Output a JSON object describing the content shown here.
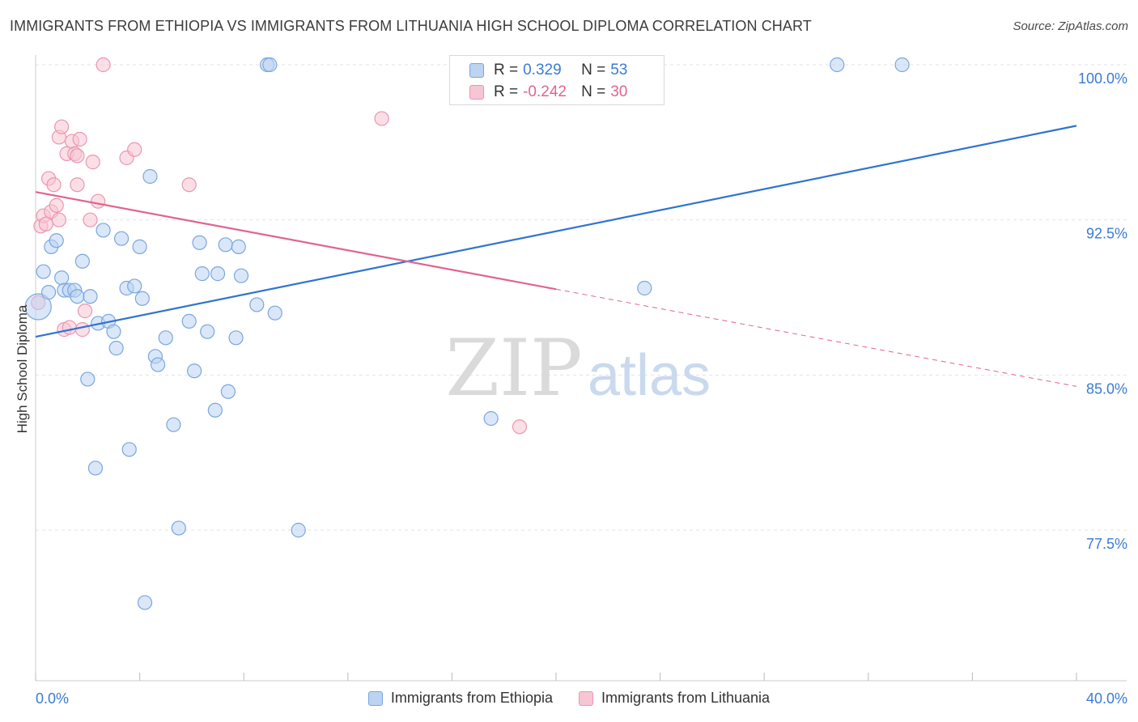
{
  "title": "IMMIGRANTS FROM ETHIOPIA VS IMMIGRANTS FROM LITHUANIA HIGH SCHOOL DIPLOMA CORRELATION CHART",
  "source": "Source: ZipAtlas.com",
  "watermark": {
    "zip": "ZIP",
    "atlas": "atlas"
  },
  "colors": {
    "blue_fill": "#bcd3f2",
    "blue_stroke": "#7aa6df",
    "blue_line": "#2f74d0",
    "pink_fill": "#f7c5d4",
    "pink_stroke": "#ea96b0",
    "pink_line": "#e0648f",
    "grid": "#e3e3e3",
    "tick_text": "#3a7bd5"
  },
  "stats": {
    "rows": [
      {
        "r_label": "R =",
        "r_value": "0.329",
        "n_label": "N =",
        "n_value": "53"
      },
      {
        "r_label": "R =",
        "r_value": "-0.242",
        "n_label": "N =",
        "n_value": "30"
      }
    ]
  },
  "legend": {
    "items": [
      "Immigrants from Ethiopia",
      "Immigrants from Lithuania"
    ]
  },
  "chart_data": {
    "type": "scatter",
    "title": "IMMIGRANTS FROM ETHIOPIA VS IMMIGRANTS FROM LITHUANIA HIGH SCHOOL DIPLOMA CORRELATION CHART",
    "xlabel": "",
    "ylabel": "High School Diploma",
    "xlim": [
      0,
      40
    ],
    "ylim": [
      72.0,
      101.0
    ],
    "x_tick_labels": [
      "0.0%",
      "40.0%"
    ],
    "y_ticks": [
      100.0,
      92.5,
      85.0,
      77.5
    ],
    "y_tick_labels": [
      "100.0%",
      "92.5%",
      "85.0%",
      "77.5%"
    ],
    "grid": true,
    "legend_position": "bottom",
    "series": [
      {
        "name": "Immigrants from Ethiopia",
        "color": "#7aa6df",
        "points": [
          [
            0.1,
            88.3
          ],
          [
            0.3,
            90.0
          ],
          [
            0.5,
            89.0
          ],
          [
            0.6,
            91.2
          ],
          [
            0.8,
            91.5
          ],
          [
            1.0,
            89.7
          ],
          [
            1.1,
            89.1
          ],
          [
            1.3,
            89.1
          ],
          [
            1.5,
            89.1
          ],
          [
            1.6,
            88.8
          ],
          [
            1.8,
            90.5
          ],
          [
            2.0,
            84.8
          ],
          [
            2.1,
            88.8
          ],
          [
            2.3,
            80.5
          ],
          [
            2.4,
            87.5
          ],
          [
            2.6,
            92.0
          ],
          [
            2.8,
            87.6
          ],
          [
            3.0,
            87.1
          ],
          [
            3.1,
            86.3
          ],
          [
            3.3,
            91.6
          ],
          [
            3.5,
            89.2
          ],
          [
            3.6,
            81.4
          ],
          [
            3.8,
            89.3
          ],
          [
            4.0,
            91.2
          ],
          [
            4.1,
            88.7
          ],
          [
            4.2,
            74.0
          ],
          [
            4.4,
            94.6
          ],
          [
            4.6,
            85.9
          ],
          [
            4.7,
            85.5
          ],
          [
            5.0,
            86.8
          ],
          [
            5.3,
            82.6
          ],
          [
            5.5,
            77.6
          ],
          [
            5.9,
            87.6
          ],
          [
            6.3,
            91.4
          ],
          [
            6.1,
            85.2
          ],
          [
            6.4,
            89.9
          ],
          [
            6.6,
            87.1
          ],
          [
            6.9,
            83.3
          ],
          [
            7.0,
            89.9
          ],
          [
            7.3,
            91.3
          ],
          [
            7.4,
            84.2
          ],
          [
            7.8,
            91.2
          ],
          [
            7.7,
            86.8
          ],
          [
            7.9,
            89.8
          ],
          [
            8.5,
            88.4
          ],
          [
            8.9,
            100.0
          ],
          [
            9.0,
            100.0
          ],
          [
            9.2,
            88.0
          ],
          [
            10.1,
            77.5
          ],
          [
            17.5,
            82.9
          ],
          [
            23.4,
            89.2
          ],
          [
            30.8,
            100.0
          ],
          [
            33.3,
            100.0
          ]
        ]
      },
      {
        "name": "Immigrants from Lithuania",
        "color": "#ea96b0",
        "points": [
          [
            0.1,
            88.5
          ],
          [
            0.2,
            92.2
          ],
          [
            0.3,
            92.7
          ],
          [
            0.4,
            92.3
          ],
          [
            0.5,
            94.5
          ],
          [
            0.6,
            92.9
          ],
          [
            0.7,
            94.2
          ],
          [
            0.8,
            93.2
          ],
          [
            0.9,
            92.5
          ],
          [
            0.9,
            96.5
          ],
          [
            1.0,
            97.0
          ],
          [
            1.1,
            87.2
          ],
          [
            1.2,
            95.7
          ],
          [
            1.3,
            87.3
          ],
          [
            1.4,
            96.3
          ],
          [
            1.5,
            95.7
          ],
          [
            1.6,
            95.6
          ],
          [
            1.6,
            94.2
          ],
          [
            1.7,
            96.4
          ],
          [
            1.8,
            87.2
          ],
          [
            1.9,
            88.1
          ],
          [
            2.1,
            92.5
          ],
          [
            2.2,
            95.3
          ],
          [
            2.4,
            93.4
          ],
          [
            2.6,
            100.0
          ],
          [
            3.5,
            95.5
          ],
          [
            3.8,
            95.9
          ],
          [
            5.9,
            94.2
          ],
          [
            13.3,
            97.4
          ],
          [
            18.6,
            82.5
          ]
        ]
      }
    ],
    "trendlines": [
      {
        "series": "Immigrants from Ethiopia",
        "x": [
          0,
          40
        ],
        "y": [
          86.85,
          97.05
        ],
        "style": "solid"
      },
      {
        "series": "Immigrants from Lithuania",
        "x": [
          0,
          20
        ],
        "y": [
          93.85,
          89.15
        ],
        "style": "solid"
      },
      {
        "series": "Immigrants from Lithuania",
        "x": [
          20,
          40
        ],
        "y": [
          89.15,
          84.45
        ],
        "style": "dashed"
      }
    ]
  }
}
